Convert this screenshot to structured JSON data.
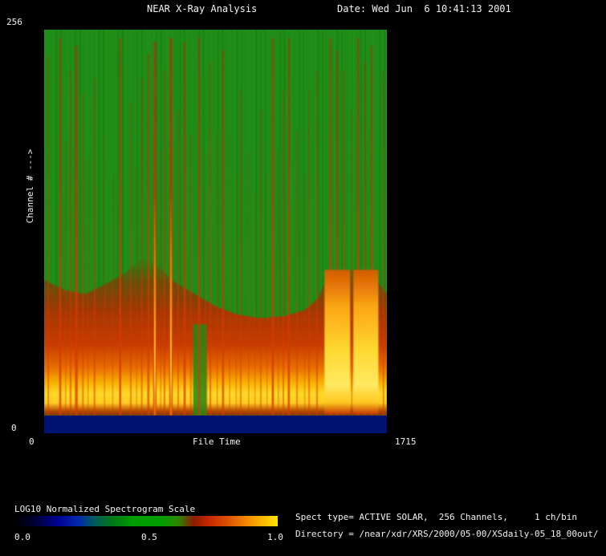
{
  "header": {
    "title": "NEAR X-Ray Analysis",
    "date": "Date: Wed Jun  6 10:41:13 2001"
  },
  "plot": {
    "y_max": "256",
    "y_min": "0",
    "y_title": "Channel # --->",
    "x_min": "0",
    "x_title": "File Time",
    "x_max": "1715"
  },
  "colorbar": {
    "title": "LOG10 Normalized Spectrogram Scale",
    "ticks": [
      "0.0",
      "0.5",
      "1.0"
    ],
    "stops": [
      [
        "0%",
        "#000000"
      ],
      [
        "8%",
        "#000038"
      ],
      [
        "16%",
        "#000090"
      ],
      [
        "24%",
        "#0028b0"
      ],
      [
        "30%",
        "#005860"
      ],
      [
        "37%",
        "#007818"
      ],
      [
        "45%",
        "#009c00"
      ],
      [
        "55%",
        "#00a000"
      ],
      [
        "62%",
        "#2a8800"
      ],
      [
        "68%",
        "#8c1c00"
      ],
      [
        "74%",
        "#c62800"
      ],
      [
        "82%",
        "#e05800"
      ],
      [
        "90%",
        "#f89800"
      ],
      [
        "100%",
        "#ffe400"
      ]
    ]
  },
  "info": {
    "spect_type_line": "Spect type= ACTIVE SOLAR,  256 Channels,     1 ch/bin",
    "directory_line": "Directory = /near/xdr/XRS/2000/05-00/XSdaily-05_18_00out/"
  },
  "chart_data": {
    "type": "heatmap",
    "title": "NEAR X-Ray Analysis",
    "xlabel": "File Time",
    "ylabel": "Channel #",
    "xlim": [
      0,
      1715
    ],
    "ylim": [
      0,
      256
    ],
    "colorbar_label": "LOG10 Normalized Spectrogram Scale",
    "colorbar_range": [
      0.0,
      1.0
    ],
    "spect_type": "ACTIVE SOLAR",
    "n_channels": 256,
    "channels_per_bin": 1,
    "description": "Normalized LOG10 X-ray spectrogram vs file time. Background level ~0.5 (green) over most channels. A hot band occupies the low channels (bottom ~35% of the image), rising from ~0.6 (dark red) through ~0.8 (orange) to ~0.9-1.0 (yellow) near the lowest channels. Numerous narrow vertical burst streaks (~0.7-0.9, red) cross all channels at many file times, with the strongest around file times ~550-640 showing yellow cores. Two broad saturated bright blocks (~1.0, yellow) span low-to-mid channels near file times ~1450-1530 and ~1560-1680. The very lowest channels (bottom ~4%) sit near ~0.1 (dark navy blue).",
    "render": {
      "base_color": "#1e8c16",
      "navy_color": "#001272",
      "navy_top": 0.956,
      "band_profile": [
        [
          0,
          0.62
        ],
        [
          0.06,
          0.645
        ],
        [
          0.12,
          0.655
        ],
        [
          0.18,
          0.63
        ],
        [
          0.24,
          0.6
        ],
        [
          0.29,
          0.565
        ],
        [
          0.33,
          0.585
        ],
        [
          0.38,
          0.625
        ],
        [
          0.44,
          0.655
        ],
        [
          0.5,
          0.685
        ],
        [
          0.56,
          0.705
        ],
        [
          0.63,
          0.715
        ],
        [
          0.7,
          0.71
        ],
        [
          0.76,
          0.695
        ],
        [
          0.8,
          0.665
        ],
        [
          0.825,
          0.615
        ],
        [
          0.86,
          0.6
        ],
        [
          0.9,
          0.595
        ],
        [
          0.95,
          0.6
        ],
        [
          1,
          0.655
        ]
      ],
      "streaks": [
        {
          "x": 0.012,
          "w": 1.5,
          "t": 0.06,
          "o": 0.75
        },
        {
          "x": 0.047,
          "w": 2.5,
          "t": 0.02,
          "o": 0.9
        },
        {
          "x": 0.063,
          "w": 1.5,
          "t": 0.28,
          "o": 0.5
        },
        {
          "x": 0.077,
          "w": 2,
          "t": 0.1,
          "o": 0.7
        },
        {
          "x": 0.094,
          "w": 3.5,
          "t": 0.04,
          "o": 0.85
        },
        {
          "x": 0.113,
          "w": 2,
          "t": 0.16,
          "o": 0.6
        },
        {
          "x": 0.128,
          "w": 1.5,
          "t": 0.32,
          "o": 0.5
        },
        {
          "x": 0.147,
          "w": 2,
          "t": 0.12,
          "o": 0.65
        },
        {
          "x": 0.176,
          "w": 1.5,
          "t": 0.26,
          "o": 0.5
        },
        {
          "x": 0.2,
          "w": 1.5,
          "t": 0.36,
          "o": 0.45
        },
        {
          "x": 0.222,
          "w": 2.5,
          "t": 0.02,
          "o": 0.95
        },
        {
          "x": 0.253,
          "w": 2,
          "t": 0.18,
          "o": 0.6
        },
        {
          "x": 0.27,
          "w": 1.5,
          "t": 0.34,
          "o": 0.45
        },
        {
          "x": 0.285,
          "w": 2,
          "t": 0.12,
          "o": 0.6
        },
        {
          "x": 0.304,
          "w": 2.5,
          "t": 0.06,
          "o": 0.8
        },
        {
          "x": 0.323,
          "w": 4,
          "t": 0.03,
          "o": 0.95,
          "hot": true
        },
        {
          "x": 0.34,
          "w": 1.5,
          "t": 0.3,
          "o": 0.5
        },
        {
          "x": 0.351,
          "w": 2,
          "t": 0.1,
          "o": 0.7
        },
        {
          "x": 0.37,
          "w": 4,
          "t": 0.02,
          "o": 0.95,
          "hot": true
        },
        {
          "x": 0.391,
          "w": 2,
          "t": 0.2,
          "o": 0.6
        },
        {
          "x": 0.41,
          "w": 2.5,
          "t": 0.03,
          "o": 0.9
        },
        {
          "x": 0.428,
          "w": 2,
          "t": 0.26,
          "o": 0.55
        },
        {
          "x": 0.452,
          "w": 2.5,
          "t": 0.02,
          "o": 0.9
        },
        {
          "x": 0.47,
          "w": 1.5,
          "t": 0.3,
          "o": 0.5
        },
        {
          "x": 0.485,
          "w": 2,
          "t": 0.08,
          "o": 0.7
        },
        {
          "x": 0.505,
          "w": 1.5,
          "t": 0.26,
          "o": 0.55
        },
        {
          "x": 0.522,
          "w": 2.5,
          "t": 0.05,
          "o": 0.85
        },
        {
          "x": 0.541,
          "w": 1.5,
          "t": 0.26,
          "o": 0.5
        },
        {
          "x": 0.56,
          "w": 1.5,
          "t": 0.36,
          "o": 0.45
        },
        {
          "x": 0.574,
          "w": 2,
          "t": 0.15,
          "o": 0.6
        },
        {
          "x": 0.597,
          "w": 1.5,
          "t": 0.3,
          "o": 0.5
        },
        {
          "x": 0.615,
          "w": 1.5,
          "t": 0.4,
          "o": 0.45
        },
        {
          "x": 0.632,
          "w": 2,
          "t": 0.2,
          "o": 0.55
        },
        {
          "x": 0.65,
          "w": 1.5,
          "t": 0.36,
          "o": 0.45
        },
        {
          "x": 0.667,
          "w": 2.5,
          "t": 0.02,
          "o": 0.95
        },
        {
          "x": 0.683,
          "w": 1.5,
          "t": 0.3,
          "o": 0.5
        },
        {
          "x": 0.698,
          "w": 2,
          "t": 0.15,
          "o": 0.6
        },
        {
          "x": 0.714,
          "w": 2.5,
          "t": 0.02,
          "o": 0.9
        },
        {
          "x": 0.738,
          "w": 2,
          "t": 0.25,
          "o": 0.55
        },
        {
          "x": 0.76,
          "w": 1.5,
          "t": 0.36,
          "o": 0.45
        },
        {
          "x": 0.773,
          "w": 2,
          "t": 0.15,
          "o": 0.6
        },
        {
          "x": 0.796,
          "w": 2,
          "t": 0.1,
          "o": 0.65
        },
        {
          "x": 0.835,
          "w": 2.5,
          "t": 0.02,
          "o": 0.9
        },
        {
          "x": 0.855,
          "w": 2.5,
          "t": 0.05,
          "o": 0.85
        },
        {
          "x": 0.875,
          "w": 2,
          "t": 0.1,
          "o": 0.7
        },
        {
          "x": 0.898,
          "w": 1.5,
          "t": 0.2,
          "o": 0.6
        },
        {
          "x": 0.916,
          "w": 2.5,
          "t": 0.02,
          "o": 0.9
        },
        {
          "x": 0.936,
          "w": 2,
          "t": 0.08,
          "o": 0.8
        },
        {
          "x": 0.956,
          "w": 2.5,
          "t": 0.04,
          "o": 0.85
        },
        {
          "x": 0.99,
          "w": 1.5,
          "t": 0.1,
          "o": 0.7
        }
      ],
      "hot_blocks": [
        {
          "x": 0.818,
          "w": 0.075,
          "top": 0.595,
          "bottom": 0.952
        },
        {
          "x": 0.902,
          "w": 0.073,
          "top": 0.595,
          "bottom": 0.952
        }
      ],
      "green_notches": [
        {
          "x": 0.435,
          "w": 0.04,
          "top": 0.73
        }
      ]
    }
  }
}
